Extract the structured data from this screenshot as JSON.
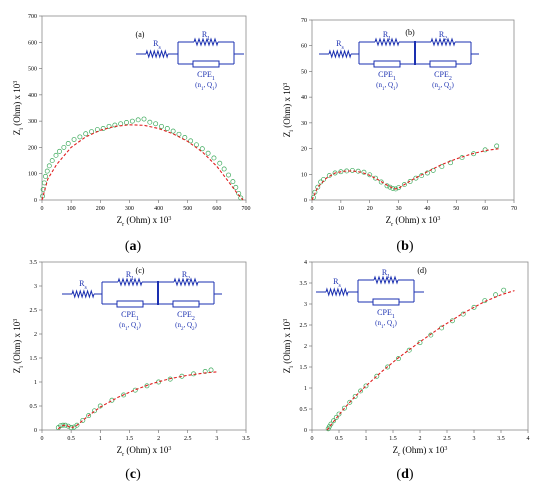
{
  "chart_data": [
    {
      "type": "scatter",
      "caption": "(a)",
      "inset_label": "(a)",
      "xlabel": "Z r (Ohm) x 10 3",
      "ylabel": "Z i (Ohm) x 10 3",
      "xlim": [
        0,
        700
      ],
      "ylim": [
        0,
        700
      ],
      "xticks": [
        0,
        100,
        200,
        300,
        400,
        500,
        600,
        700
      ],
      "yticks": [
        0,
        100,
        200,
        300,
        400,
        500,
        600,
        700
      ],
      "circuit": {
        "labels": [
          "Rs",
          "R1",
          "CPE1",
          "(n1, Q1)"
        ]
      },
      "series": [
        {
          "marker": "open-circle",
          "color": "#3daa5c",
          "x": [
            2,
            4,
            8,
            12,
            18,
            25,
            35,
            48,
            60,
            75,
            90,
            110,
            130,
            150,
            170,
            190,
            210,
            230,
            250,
            270,
            290,
            310,
            330,
            350,
            370,
            390,
            410,
            430,
            450,
            470,
            490,
            510,
            530,
            550,
            570,
            590,
            610,
            625,
            640,
            655,
            665,
            675,
            682
          ],
          "y": [
            15,
            40,
            65,
            90,
            110,
            130,
            150,
            170,
            185,
            200,
            215,
            230,
            240,
            252,
            260,
            268,
            272,
            280,
            285,
            290,
            295,
            300,
            305,
            308,
            296,
            290,
            280,
            272,
            262,
            250,
            238,
            225,
            210,
            195,
            178,
            160,
            140,
            118,
            95,
            70,
            48,
            25,
            8
          ]
        },
        {
          "marker": "line",
          "color": "#e02020",
          "x": [
            0,
            20,
            50,
            100,
            150,
            200,
            250,
            300,
            350,
            400,
            450,
            500,
            550,
            600,
            640,
            670,
            690
          ],
          "y": [
            0,
            80,
            135,
            200,
            240,
            265,
            280,
            286,
            284,
            272,
            252,
            223,
            183,
            128,
            70,
            25,
            0
          ]
        }
      ]
    },
    {
      "type": "scatter",
      "caption": "(b)",
      "inset_label": "(b)",
      "xlabel": "Z r (Ohm) x 10 3",
      "ylabel": "Z i (Ohm) x 10 3",
      "xlim": [
        0,
        70
      ],
      "ylim": [
        0,
        70
      ],
      "xticks": [
        0,
        10,
        20,
        30,
        40,
        50,
        60,
        70
      ],
      "yticks": [
        0,
        10,
        20,
        30,
        40,
        50,
        60,
        70
      ],
      "circuit": {
        "labels": [
          "Rs",
          "R1",
          "R2",
          "CPE1",
          "CPE2",
          "(n1, Q1)",
          "(n2, Q2)"
        ]
      },
      "series": [
        {
          "marker": "open-circle",
          "color": "#3daa5c",
          "x": [
            0.5,
            1,
            2,
            3,
            4,
            6,
            8,
            10,
            12,
            14,
            16,
            18,
            20,
            22,
            24,
            26,
            27,
            28,
            29,
            30,
            32,
            34,
            36,
            38,
            40,
            42,
            45,
            48,
            52,
            56,
            60,
            64
          ],
          "y": [
            1,
            3,
            5,
            7,
            8,
            9.5,
            10.5,
            11,
            11.3,
            11.5,
            11.2,
            10.8,
            9.8,
            8.5,
            7,
            5.5,
            5,
            4.5,
            4.3,
            4.8,
            6,
            7.2,
            8.5,
            9.5,
            10.5,
            11.5,
            13,
            14.5,
            16.5,
            18,
            19.5,
            21
          ]
        },
        {
          "marker": "line",
          "color": "#e02020",
          "x": [
            0,
            2,
            5,
            8,
            11,
            14,
            17,
            20,
            23,
            26,
            28,
            29,
            30,
            32,
            35,
            40,
            45,
            50,
            55,
            60,
            65
          ],
          "y": [
            0,
            5,
            8.5,
            10.5,
            11.2,
            11.3,
            10.8,
            9.6,
            7.8,
            5.8,
            4.6,
            4.3,
            4.6,
            6,
            8,
            11,
            13.8,
            16,
            17.8,
            19.2,
            20
          ]
        }
      ]
    },
    {
      "type": "scatter",
      "caption": "(c)",
      "inset_label": "(c)",
      "xlabel": "Z r (Ohm) x 10 3",
      "ylabel": "Z i (Ohm) x 10 3",
      "xlim": [
        0,
        3.5
      ],
      "ylim": [
        0,
        3.5
      ],
      "xticks": [
        0,
        0.5,
        1,
        1.5,
        2,
        2.5,
        3,
        3.5
      ],
      "yticks": [
        0,
        0.5,
        1,
        1.5,
        2,
        2.5,
        3,
        3.5
      ],
      "circuit": {
        "labels": [
          "Rs",
          "R1",
          "R2",
          "CPE1",
          "CPE2",
          "(n1, Q1)",
          "(n2, Q2)"
        ]
      },
      "series": [
        {
          "marker": "open-circle",
          "color": "#3daa5c",
          "x": [
            0.28,
            0.32,
            0.36,
            0.4,
            0.45,
            0.5,
            0.55,
            0.6,
            0.7,
            0.8,
            0.9,
            1.0,
            1.2,
            1.4,
            1.6,
            1.8,
            2.0,
            2.2,
            2.4,
            2.6,
            2.8,
            2.9
          ],
          "y": [
            0.05,
            0.09,
            0.1,
            0.1,
            0.08,
            0.05,
            0.06,
            0.1,
            0.2,
            0.3,
            0.4,
            0.5,
            0.62,
            0.73,
            0.83,
            0.92,
            1.0,
            1.06,
            1.12,
            1.17,
            1.22,
            1.25
          ]
        },
        {
          "marker": "line",
          "color": "#e02020",
          "x": [
            0.28,
            0.33,
            0.38,
            0.43,
            0.48,
            0.52,
            0.6,
            0.8,
            1.0,
            1.3,
            1.6,
            1.9,
            2.2,
            2.5,
            2.8,
            3.0
          ],
          "y": [
            0.02,
            0.08,
            0.1,
            0.09,
            0.06,
            0.05,
            0.1,
            0.3,
            0.48,
            0.68,
            0.84,
            0.97,
            1.07,
            1.14,
            1.19,
            1.21
          ]
        }
      ]
    },
    {
      "type": "scatter",
      "caption": "(d)",
      "inset_label": "(d)",
      "xlabel": "Z r (Ohm) x 10 3",
      "ylabel": "Z i (Ohm) x 10 3",
      "xlim": [
        0,
        4
      ],
      "ylim": [
        0,
        4
      ],
      "xticks": [
        0,
        0.5,
        1,
        1.5,
        2,
        2.5,
        3,
        3.5,
        4
      ],
      "yticks": [
        0,
        0.5,
        1,
        1.5,
        2,
        2.5,
        3,
        3.5,
        4
      ],
      "circuit": {
        "labels": [
          "Rs",
          "R1",
          "CPE1",
          "(n1, Q1)"
        ]
      },
      "series": [
        {
          "marker": "open-circle",
          "color": "#3daa5c",
          "x": [
            0.3,
            0.32,
            0.35,
            0.4,
            0.45,
            0.5,
            0.6,
            0.7,
            0.8,
            0.9,
            1.0,
            1.2,
            1.4,
            1.6,
            1.8,
            2.0,
            2.2,
            2.4,
            2.6,
            2.8,
            3.0,
            3.2,
            3.4,
            3.55
          ],
          "y": [
            0.03,
            0.08,
            0.14,
            0.22,
            0.3,
            0.38,
            0.52,
            0.66,
            0.8,
            0.93,
            1.05,
            1.28,
            1.5,
            1.7,
            1.9,
            2.08,
            2.26,
            2.43,
            2.6,
            2.76,
            2.92,
            3.08,
            3.22,
            3.33
          ]
        },
        {
          "marker": "line",
          "color": "#e02020",
          "x": [
            0.28,
            0.4,
            0.6,
            0.8,
            1.0,
            1.3,
            1.6,
            2.0,
            2.4,
            2.8,
            3.2,
            3.5,
            3.75
          ],
          "y": [
            0,
            0.2,
            0.52,
            0.8,
            1.05,
            1.4,
            1.72,
            2.1,
            2.46,
            2.78,
            3.06,
            3.22,
            3.32
          ]
        }
      ]
    }
  ]
}
